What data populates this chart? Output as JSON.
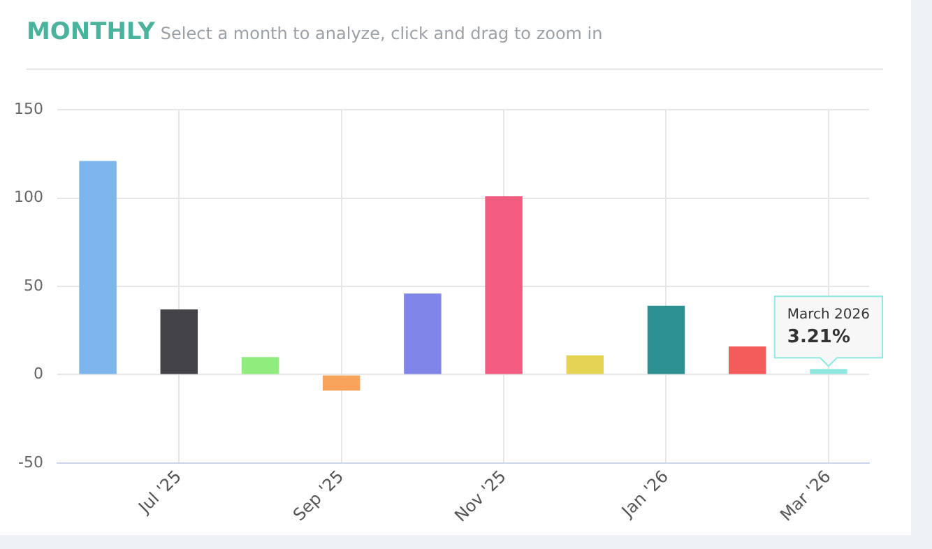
{
  "chart_data": {
    "type": "bar",
    "title": "MONTHLY",
    "subtitle": "Select a month to analyze, click and drag to zoom in",
    "categories": [
      null,
      "Jul '25",
      null,
      "Sep '25",
      null,
      "Nov '25",
      null,
      "Jan '26",
      null,
      "Mar '26"
    ],
    "values": [
      121,
      37,
      10,
      -9,
      46,
      101,
      11,
      39,
      16,
      3.21
    ],
    "colors": [
      "#7cb5ec",
      "#434348",
      "#90ed7d",
      "#f7a35c",
      "#8085e9",
      "#f15c80",
      "#e4d354",
      "#2b908f",
      "#f45b5b",
      "#91e8e1"
    ],
    "ylim": [
      -50,
      150
    ],
    "yticks": [
      -50,
      0,
      50,
      100,
      150
    ],
    "grid": true,
    "legend": false,
    "annotations": [
      {
        "text": "March 2026\n3.21%",
        "x": "Mar '26",
        "y": 3.21
      }
    ]
  }
}
